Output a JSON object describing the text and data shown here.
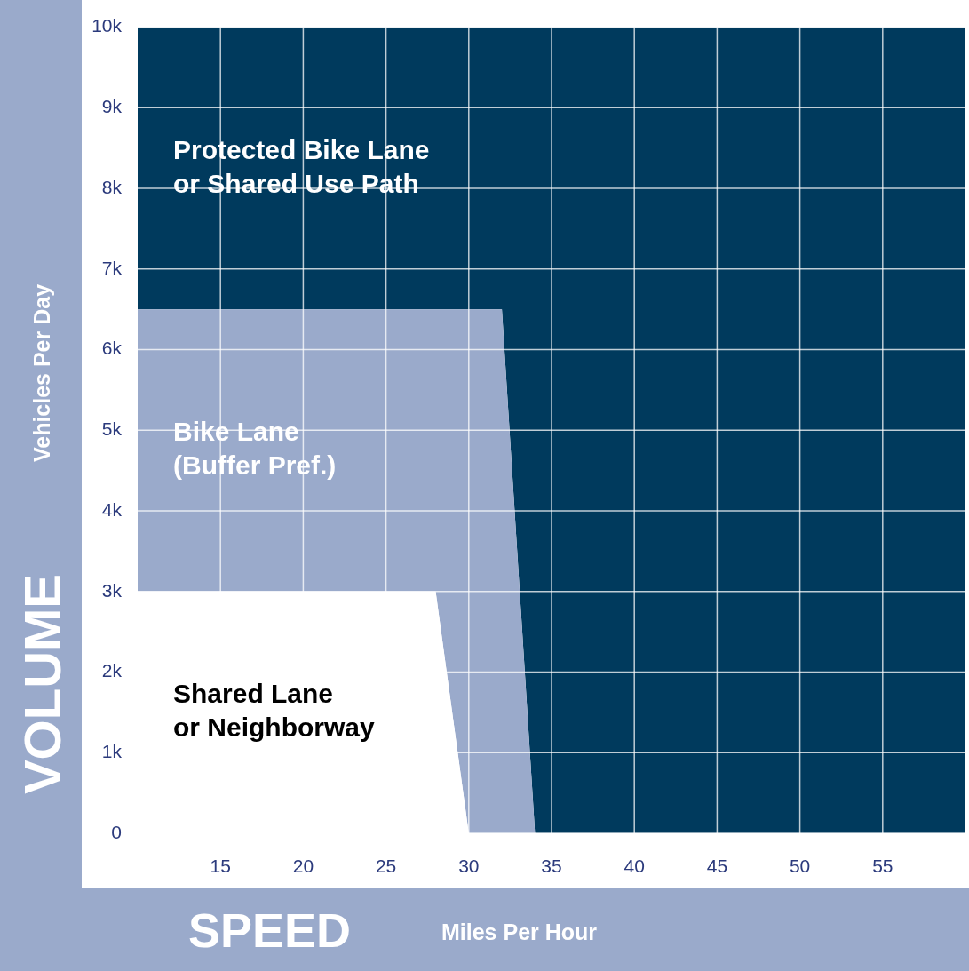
{
  "chart_data": {
    "type": "area",
    "stacked": true,
    "xlabel": "SPEED",
    "ylabel": "VOLUME",
    "annotations": [
      "Miles Per Hour",
      "Vehicles Per Day"
    ],
    "x": [
      10,
      28,
      30,
      32,
      34,
      60
    ],
    "series": [
      {
        "name": "Shared Lane or Neighborway",
        "color": "#ffffff",
        "values": [
          3000,
          3000,
          0,
          0,
          0,
          0
        ]
      },
      {
        "name": "Bike Lane (Buffer Pref.)",
        "color": "#9aaacb",
        "values": [
          3500,
          3500,
          6500,
          6500,
          0,
          0
        ]
      },
      {
        "name": "Protected Bike Lane or Shared Use Path",
        "color": "#003a5d",
        "values": [
          3500,
          3500,
          3500,
          3500,
          10000,
          10000
        ]
      }
    ],
    "xlim": [
      10,
      60
    ],
    "xticks": [
      15,
      20,
      25,
      30,
      35,
      40,
      45,
      50,
      55
    ],
    "ylim": [
      0,
      10000
    ],
    "yticks": [
      0,
      {
        "value": 1000,
        "label": "1k"
      },
      {
        "value": 2000,
        "label": "2k"
      },
      {
        "value": 3000,
        "label": "3k"
      },
      {
        "value": 4000,
        "label": "4k"
      },
      {
        "value": 5000,
        "label": "5k"
      },
      {
        "value": 6000,
        "label": "6k"
      },
      {
        "value": 7000,
        "label": "7k"
      },
      {
        "value": 8000,
        "label": "8k"
      },
      {
        "value": 9000,
        "label": "9k"
      },
      {
        "value": 10000,
        "label": "10k"
      }
    ],
    "grid": true
  }
}
